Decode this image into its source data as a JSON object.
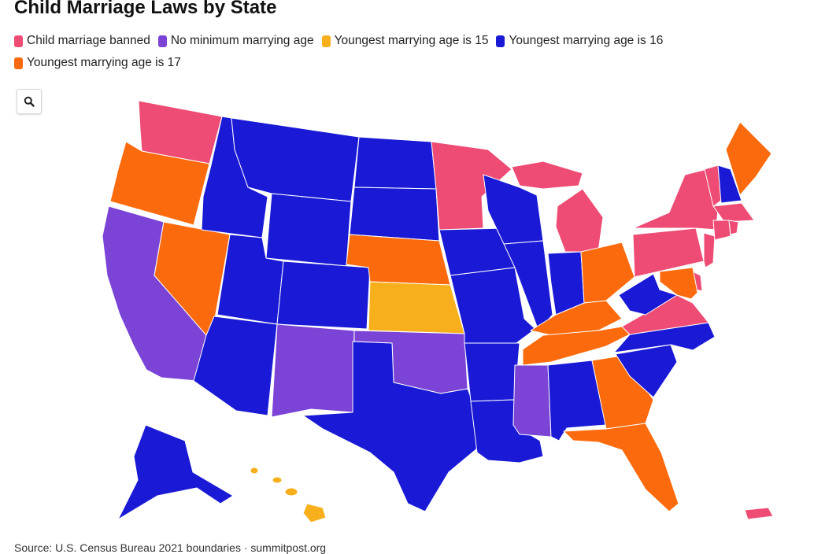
{
  "title": "Child Marriage Laws by State",
  "legend": [
    {
      "label": "Child marriage banned",
      "color": "#ee4c74"
    },
    {
      "label": "No minimum marrying age",
      "color": "#7b43d6"
    },
    {
      "label": "Youngest marrying age is 15",
      "color": "#f7b01c"
    },
    {
      "label": "Youngest marrying age is 16",
      "color": "#1a1ad6"
    },
    {
      "label": "Youngest marrying age is 17",
      "color": "#fb6a0d"
    }
  ],
  "zoom_icon": "search-icon",
  "source": "Source: U.S. Census Bureau 2021 boundaries · summitpost.org",
  "states": {
    "WA": "Child marriage banned",
    "OR": "Youngest marrying age is 17",
    "CA": "No minimum marrying age",
    "NV": "Youngest marrying age is 17",
    "ID": "Youngest marrying age is 16",
    "MT": "Youngest marrying age is 16",
    "WY": "Youngest marrying age is 16",
    "UT": "Youngest marrying age is 16",
    "CO": "Youngest marrying age is 16",
    "AZ": "Youngest marrying age is 16",
    "NM": "No minimum marrying age",
    "ND": "Youngest marrying age is 16",
    "SD": "Youngest marrying age is 16",
    "NE": "Youngest marrying age is 17",
    "KS": "Youngest marrying age is 15",
    "OK": "No minimum marrying age",
    "TX": "Youngest marrying age is 16",
    "MN": "Child marriage banned",
    "IA": "Youngest marrying age is 16",
    "MO": "Youngest marrying age is 16",
    "AR": "Youngest marrying age is 16",
    "LA": "Youngest marrying age is 16",
    "WI": "Youngest marrying age is 16",
    "IL": "Youngest marrying age is 16",
    "MI": "Child marriage banned",
    "IN": "Youngest marrying age is 16",
    "OH": "Youngest marrying age is 17",
    "KY": "Youngest marrying age is 17",
    "TN": "Youngest marrying age is 17",
    "MS": "No minimum marrying age",
    "AL": "Youngest marrying age is 16",
    "GA": "Youngest marrying age is 17",
    "FL": "Youngest marrying age is 17",
    "SC": "Youngest marrying age is 16",
    "NC": "Youngest marrying age is 16",
    "VA": "Child marriage banned",
    "WV": "Youngest marrying age is 16",
    "PA": "Child marriage banned",
    "NY": "Child marriage banned",
    "NJ": "Child marriage banned",
    "DE": "Child marriage banned",
    "MD": "Youngest marrying age is 17",
    "VT": "Child marriage banned",
    "NH": "Youngest marrying age is 16",
    "ME": "Youngest marrying age is 17",
    "MA": "Child marriage banned",
    "CT": "Child marriage banned",
    "RI": "Child marriage banned",
    "AK": "Youngest marrying age is 16",
    "HI": "Youngest marrying age is 15",
    "PR": "Child marriage banned"
  }
}
